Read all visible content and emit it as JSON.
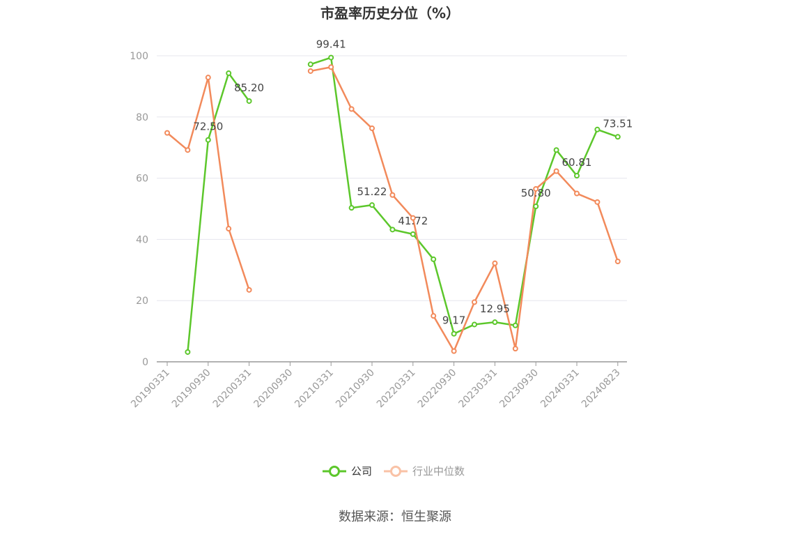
{
  "chart_data": {
    "type": "line",
    "title": "市盈率历史分位（%）",
    "source": "数据来源：恒生聚源",
    "ylim": [
      0,
      100
    ],
    "yticks": [
      0,
      20,
      40,
      60,
      80,
      100
    ],
    "grid": true,
    "legend_position": "bottom",
    "x_tick_labels": [
      "20190331",
      "20190930",
      "20200331",
      "20200930",
      "20210331",
      "20210930",
      "20220331",
      "20220930",
      "20230331",
      "20230930",
      "20240331",
      "20240823"
    ],
    "x": [
      "20190331",
      "20190630",
      "20190930",
      "20191231",
      "20200331",
      "20200630",
      "20200930",
      "20201231",
      "20210331",
      "20210630",
      "20210930",
      "20211231",
      "20220331",
      "20220630",
      "20220930",
      "20221231",
      "20230331",
      "20230630",
      "20230930",
      "20231231",
      "20240331",
      "20240630",
      "20240823"
    ],
    "series": [
      {
        "name": "公司",
        "color": "#5cc72b",
        "values": [
          null,
          3.2,
          72.5,
          94.3,
          85.2,
          null,
          null,
          97.2,
          99.41,
          50.3,
          51.22,
          43.2,
          41.72,
          33.5,
          9.17,
          12.2,
          12.95,
          11.9,
          50.8,
          69.2,
          60.81,
          75.9,
          73.51
        ],
        "labels": {
          "2": "72.50",
          "4": "85.20",
          "8": "99.41",
          "10": "51.22",
          "12": "41.72",
          "14": "9.17",
          "16": "12.95",
          "18": "50.80",
          "20": "60.81",
          "22": "73.51"
        }
      },
      {
        "name": "行业中位数",
        "color": "#f28a5b",
        "values": [
          74.8,
          69.2,
          92.9,
          43.5,
          23.5,
          null,
          null,
          95.0,
          96.3,
          82.6,
          76.3,
          54.5,
          47.0,
          15.0,
          3.5,
          19.5,
          32.2,
          4.3,
          56.5,
          62.3,
          55.0,
          52.2,
          32.8
        ]
      }
    ]
  }
}
